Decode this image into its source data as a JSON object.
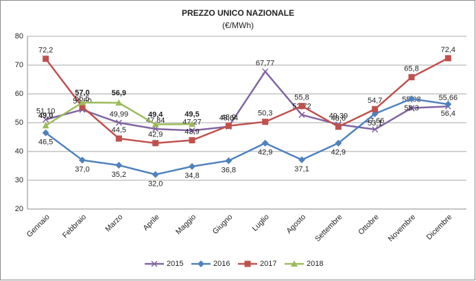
{
  "chart_data": {
    "type": "line",
    "title": "PREZZO UNICO NAZIONALE",
    "subtitle": "(€/MWh)",
    "categories": [
      "Gennaio",
      "Febbraio",
      "Marzo",
      "Aprile",
      "Maggio",
      "Giugno",
      "Luglio",
      "Agosto",
      "Settembre",
      "Ottobre",
      "Novembre",
      "Dicembre"
    ],
    "series": [
      {
        "name": "2015",
        "color": "#8064a2",
        "marker": "x",
        "values": [
          51.1,
          54.5,
          49.99,
          47.84,
          47.27,
          48.64,
          67.77,
          52.72,
          49.39,
          47.66,
          55.08,
          55.66
        ],
        "value_labels": [
          "51,10",
          "54,50",
          "49,99",
          "47,84",
          "47,27",
          "48,64",
          "67,77",
          "52,72",
          "49,39",
          "47,66",
          "55,08",
          "55,66"
        ]
      },
      {
        "name": "2016",
        "color": "#4f81bd",
        "marker": "diamond",
        "values": [
          46.5,
          37.0,
          35.2,
          32.0,
          34.8,
          36.8,
          42.9,
          37.1,
          42.9,
          53.1,
          58.3,
          56.4
        ],
        "value_labels": [
          "46,5",
          "37,0",
          "35,2",
          "32,0",
          "34,8",
          "36,8",
          "42,9",
          "37,1",
          "42,9",
          "53,1",
          "58,3",
          "56,4"
        ]
      },
      {
        "name": "2017",
        "color": "#c0504d",
        "marker": "square",
        "values": [
          72.2,
          55.5,
          44.5,
          42.9,
          43.9,
          48.9,
          50.3,
          55.8,
          48.6,
          54.7,
          65.8,
          72.4
        ],
        "value_labels": [
          "72,2",
          "55,5",
          "44,5",
          "42,9",
          "43,9",
          "48,9",
          "50,3",
          "55,8",
          "48,6",
          "54,7",
          "65,8",
          "72,4"
        ]
      },
      {
        "name": "2018",
        "color": "#9bbb59",
        "marker": "triangle",
        "values": [
          49.0,
          57.0,
          56.9,
          49.4,
          49.5,
          null,
          null,
          null,
          null,
          null,
          null,
          null
        ],
        "value_labels": [
          "49,0",
          "57,0",
          "56,9",
          "49,4",
          "49,5",
          null,
          null,
          null,
          null,
          null,
          null,
          null
        ]
      }
    ],
    "ylim": [
      20,
      80
    ],
    "yticks": [
      20,
      30,
      40,
      50,
      60,
      70,
      80
    ],
    "grid": true,
    "legend": "bottom"
  }
}
